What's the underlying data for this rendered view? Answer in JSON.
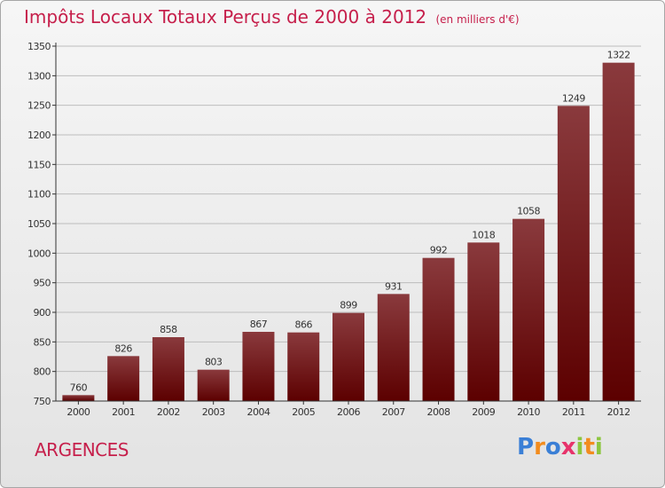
{
  "title": "Impôts Locaux Totaux Perçus de 2000 à 2012",
  "unit": "(en milliers d'€)",
  "town": "ARGENCES",
  "brand": {
    "letters": [
      "P",
      "r",
      "o",
      "x",
      "i",
      "t",
      "i"
    ],
    "colors": [
      "#3a7fd6",
      "#f28c1e",
      "#3a7fd6",
      "#e7336b",
      "#8cc63f",
      "#f28c1e",
      "#8cc63f"
    ]
  },
  "colors": {
    "bar_top": "#8a3a3d",
    "bar_bottom": "#5c0000",
    "title": "#c61f4b"
  },
  "chart_data": {
    "type": "bar",
    "categories": [
      "2000",
      "2001",
      "2002",
      "2003",
      "2004",
      "2005",
      "2006",
      "2007",
      "2008",
      "2009",
      "2010",
      "2011",
      "2012"
    ],
    "values": [
      760,
      826,
      858,
      803,
      867,
      866,
      899,
      931,
      992,
      1018,
      1058,
      1249,
      1322
    ],
    "ylim": [
      750,
      1350
    ],
    "yticks": [
      750,
      800,
      850,
      900,
      950,
      1000,
      1050,
      1100,
      1150,
      1200,
      1250,
      1300,
      1350
    ],
    "grid": true,
    "xlabel": "",
    "ylabel": ""
  }
}
